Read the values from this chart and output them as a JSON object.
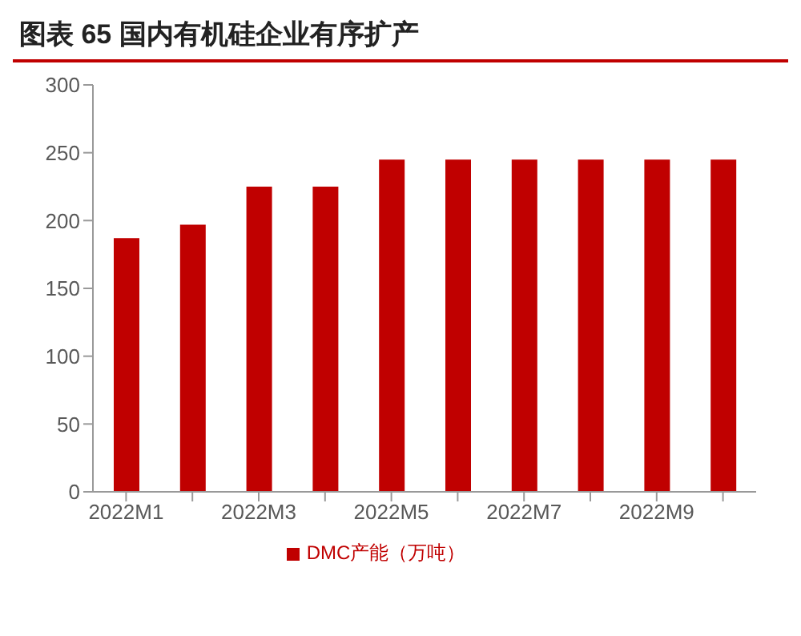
{
  "chart_data": {
    "type": "bar",
    "title": "图表 65 国内有机硅企业有序扩产",
    "categories": [
      "2022M1",
      null,
      "2022M3",
      null,
      "2022M5",
      null,
      "2022M7",
      null,
      "2022M9",
      null
    ],
    "series": [
      {
        "name": "DMC产能（万吨）",
        "color": "#c00000",
        "values": [
          187,
          197,
          225,
          225,
          245,
          245,
          245,
          245,
          245,
          245
        ]
      }
    ],
    "ylim": [
      0,
      300
    ],
    "yticks": [
      0,
      50,
      100,
      150,
      200,
      250,
      300
    ],
    "grid": false,
    "legend": "bottom"
  }
}
